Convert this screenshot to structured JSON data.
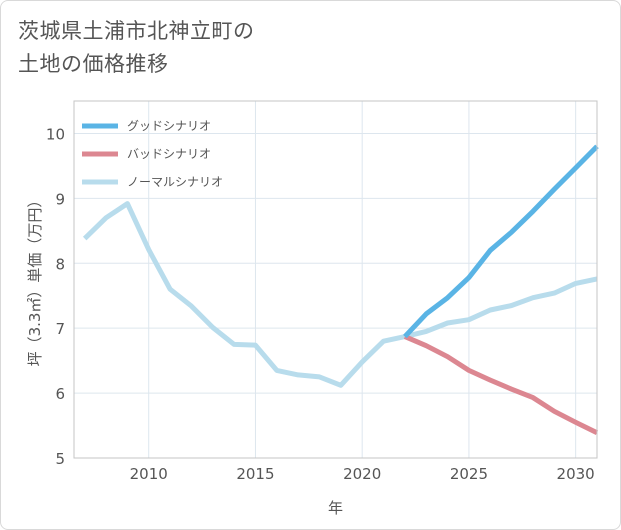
{
  "title_line1": "茨城県土浦市北神立町の",
  "title_line2": "土地の価格推移",
  "colors": {
    "good": "#5ab4e5",
    "bad": "#dc8791",
    "normal": "#b8dcec",
    "grid": "#dde6ee",
    "frame": "#c5c5c5"
  },
  "chart_data": {
    "type": "line",
    "xlabel": "年",
    "ylabel": "坪（3.3㎡）単価（万円）",
    "xlim": [
      2006.5,
      2031
    ],
    "ylim": [
      5,
      10.5
    ],
    "xticks": [
      2010,
      2015,
      2020,
      2025,
      2030
    ],
    "yticks": [
      5,
      6,
      7,
      8,
      9,
      10
    ],
    "grid": true,
    "legend_position": "top-left",
    "series": [
      {
        "name": "グッドシナリオ",
        "key": "good",
        "x": [
          2022,
          2023,
          2024,
          2025,
          2026,
          2027,
          2028,
          2029,
          2030,
          2031
        ],
        "y": [
          6.87,
          7.22,
          7.47,
          7.78,
          8.2,
          8.48,
          8.8,
          9.14,
          9.47,
          9.8
        ]
      },
      {
        "name": "バッドシナリオ",
        "key": "bad",
        "x": [
          2022,
          2023,
          2024,
          2025,
          2026,
          2027,
          2028,
          2029,
          2030,
          2031
        ],
        "y": [
          6.87,
          6.73,
          6.56,
          6.35,
          6.2,
          6.06,
          5.93,
          5.72,
          5.55,
          5.39
        ]
      },
      {
        "name": "ノーマルシナリオ",
        "key": "normal",
        "x": [
          2007,
          2008,
          2009,
          2010,
          2011,
          2012,
          2013,
          2014,
          2015,
          2016,
          2017,
          2018,
          2019,
          2020,
          2021,
          2022,
          2023,
          2024,
          2025,
          2026,
          2027,
          2028,
          2029,
          2030,
          2031
        ],
        "y": [
          8.38,
          8.7,
          8.92,
          8.21,
          7.6,
          7.34,
          7.01,
          6.75,
          6.74,
          6.35,
          6.28,
          6.25,
          6.12,
          6.48,
          6.8,
          6.87,
          6.95,
          7.08,
          7.13,
          7.28,
          7.35,
          7.47,
          7.54,
          7.69,
          7.76
        ]
      }
    ]
  }
}
